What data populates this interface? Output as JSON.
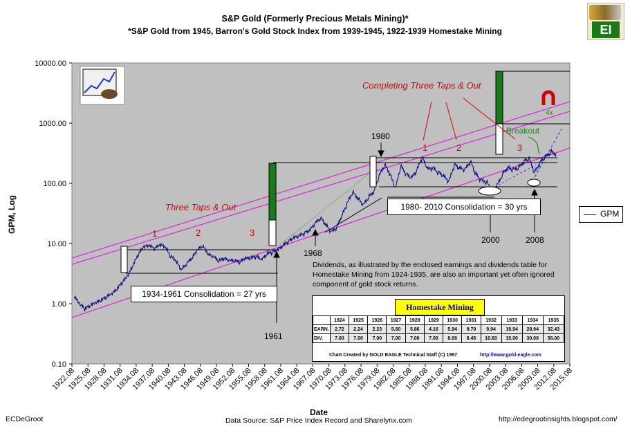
{
  "header": {
    "title": "S&P Gold (Formerly Precious Metals Mining)*",
    "subtitle": "*S&P Gold from 1945, Barron's Gold Stock Index from 1939-1945, 1922-1939 Homestake Mining"
  },
  "footer": {
    "left": "ECDeGroot",
    "center": "Data Source: S&P Price Index Record and Sharelynx.com",
    "right": "http://edegrootinsights.blogspot.com/"
  },
  "logo": {
    "text": "EI",
    "icon": "coins-logo-icon"
  },
  "legend": {
    "label": "GPM",
    "position": "right"
  },
  "annotations": {
    "three_taps": "Three Taps & Out",
    "completing": "Completing Three Taps & Out",
    "tap1a": "1",
    "tap2a": "2",
    "tap3a": "3",
    "tap1b": "1",
    "tap2b": "2",
    "tap3b": "3",
    "consol1": "1934-1961 Consolidation = 27 yrs",
    "consol2": "1980- 2010 Consolidation = 30 yrs",
    "y1961": "1961",
    "y1968": "1968",
    "y1980": "1980",
    "y2000": "2000",
    "y2008": "2008",
    "breakout": "Breakout",
    "fourx": "4x",
    "dividends_note": "Dividends, as illustrated by the enclosed earnings and dividends table for Homestake Mining from 1924-1935, are also an important yet often ignored component of gold stock returns."
  },
  "homestake_table": {
    "title": "Homestake Mining",
    "years": [
      "1924",
      "1925",
      "1926",
      "1927",
      "1928",
      "1929",
      "1930",
      "1931",
      "1932",
      "1933",
      "1934",
      "1935"
    ],
    "earn_label": "EARN.",
    "earn": [
      "2.72",
      "2.24",
      "2.23",
      "5.60",
      "5.86",
      "4.16",
      "5.94",
      "9.70",
      "9.94",
      "19.94",
      "28.94",
      "32.43"
    ],
    "div_label": "DIV.",
    "div": [
      "7.00",
      "7.00",
      "7.00",
      "7.00",
      "7.00",
      "7.00",
      "8.00",
      "8.45",
      "10.60",
      "15.00",
      "30.00",
      "56.00"
    ],
    "credit": "Chart Created by GOLD EAGLE Technical Staff (C) 1997",
    "link": "http://www.gold-eagle.com"
  },
  "chart_data": {
    "type": "line",
    "title": "S&P Gold (Formerly Precious Metals Mining)*",
    "xlabel": "Date",
    "ylabel": "GPM, Log",
    "y_scale": "log",
    "ylim": [
      0.1,
      10000
    ],
    "y_ticks": [
      "0.10",
      "1.00",
      "10.00",
      "100.00",
      "1000.00",
      "10000.00"
    ],
    "x_ticks": [
      "1922.08",
      "1925.08",
      "1928.08",
      "1931.08",
      "1934.08",
      "1937.08",
      "1940.08",
      "1943.08",
      "1946.08",
      "1949.08",
      "1952.08",
      "1955.08",
      "1958.08",
      "1961.08",
      "1964.08",
      "1967.08",
      "1970.08",
      "1973.08",
      "1976.08",
      "1979.08",
      "1982.08",
      "1985.08",
      "1988.08",
      "1991.08",
      "1994.08",
      "1997.08",
      "2000.08",
      "2003.08",
      "2006.08",
      "2009.08",
      "2012.08",
      "2015.08"
    ],
    "xlim": [
      1922.08,
      2015.08
    ],
    "grid": false,
    "legend": "right",
    "series": [
      {
        "name": "GPM",
        "color": "#000080",
        "points": [
          [
            1922.5,
            1.3
          ],
          [
            1923.5,
            0.95
          ],
          [
            1924.5,
            0.8
          ],
          [
            1925.5,
            0.9
          ],
          [
            1926.5,
            1.0
          ],
          [
            1927.5,
            1.1
          ],
          [
            1928.5,
            1.25
          ],
          [
            1929.5,
            1.4
          ],
          [
            1930.5,
            1.7
          ],
          [
            1931.5,
            2.2
          ],
          [
            1932.5,
            2.8
          ],
          [
            1933.5,
            4.2
          ],
          [
            1934.5,
            6.5
          ],
          [
            1935.5,
            8.5
          ],
          [
            1936.5,
            9.0
          ],
          [
            1937.5,
            8.0
          ],
          [
            1938.5,
            9.2
          ],
          [
            1939.5,
            8.5
          ],
          [
            1940.5,
            6.0
          ],
          [
            1941.5,
            5.0
          ],
          [
            1942.5,
            3.5
          ],
          [
            1943.5,
            4.5
          ],
          [
            1944.5,
            5.5
          ],
          [
            1945.5,
            7.5
          ],
          [
            1946.5,
            9.0
          ],
          [
            1947.5,
            6.5
          ],
          [
            1948.5,
            5.8
          ],
          [
            1949.5,
            5.0
          ],
          [
            1950.5,
            5.5
          ],
          [
            1951.5,
            5.0
          ],
          [
            1952.5,
            5.0
          ],
          [
            1953.5,
            4.8
          ],
          [
            1954.5,
            5.5
          ],
          [
            1955.5,
            5.5
          ],
          [
            1956.5,
            6.0
          ],
          [
            1957.5,
            5.2
          ],
          [
            1958.5,
            6.5
          ],
          [
            1959.5,
            7.0
          ],
          [
            1960.5,
            7.5
          ],
          [
            1961.5,
            9.0
          ],
          [
            1962.5,
            10.5
          ],
          [
            1963.5,
            12.0
          ],
          [
            1964.5,
            13.0
          ],
          [
            1965.5,
            14.5
          ],
          [
            1966.5,
            16.0
          ],
          [
            1967.5,
            21.0
          ],
          [
            1968.5,
            26.0
          ],
          [
            1969.5,
            20.0
          ],
          [
            1970.5,
            15.0
          ],
          [
            1971.5,
            18.0
          ],
          [
            1972.5,
            28.0
          ],
          [
            1973.5,
            45.0
          ],
          [
            1974.5,
            70.0
          ],
          [
            1975.5,
            55.0
          ],
          [
            1976.5,
            42.0
          ],
          [
            1977.5,
            58.0
          ],
          [
            1978.5,
            72.0
          ],
          [
            1979.5,
            130.0
          ],
          [
            1980.5,
            200.0
          ],
          [
            1981.5,
            140.0
          ],
          [
            1982.5,
            80.0
          ],
          [
            1983.5,
            190.0
          ],
          [
            1984.5,
            140.0
          ],
          [
            1985.5,
            120.0
          ],
          [
            1986.5,
            160.0
          ],
          [
            1987.5,
            270.0
          ],
          [
            1988.5,
            170.0
          ],
          [
            1989.5,
            175.0
          ],
          [
            1990.5,
            150.0
          ],
          [
            1991.5,
            130.0
          ],
          [
            1992.5,
            105.0
          ],
          [
            1993.5,
            200.0
          ],
          [
            1994.5,
            175.0
          ],
          [
            1995.5,
            165.0
          ],
          [
            1996.5,
            230.0
          ],
          [
            1997.5,
            140.0
          ],
          [
            1998.5,
            110.0
          ],
          [
            1999.5,
            105.0
          ],
          [
            2000.5,
            75.0
          ],
          [
            2001.5,
            90.0
          ],
          [
            2002.5,
            140.0
          ],
          [
            2003.5,
            180.0
          ],
          [
            2004.5,
            165.0
          ],
          [
            2005.5,
            180.0
          ],
          [
            2006.5,
            230.0
          ],
          [
            2007.5,
            250.0
          ],
          [
            2008.5,
            150.0
          ],
          [
            2009.5,
            220.0
          ],
          [
            2010.5,
            270.0
          ],
          [
            2011.5,
            330.0
          ],
          [
            2012.5,
            310.0
          ]
        ]
      }
    ]
  }
}
